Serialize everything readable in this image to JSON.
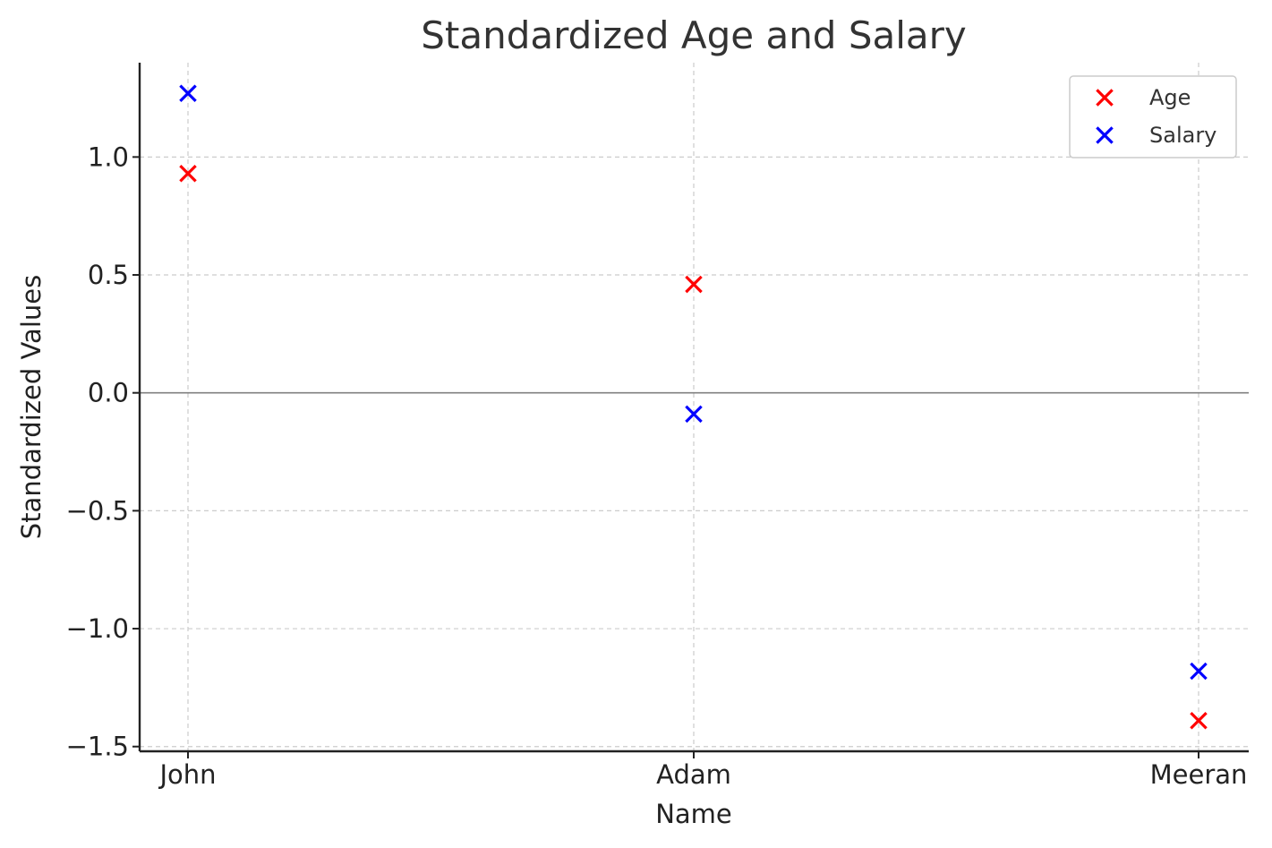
{
  "chart_data": {
    "type": "scatter",
    "title": "Standardized Age and Salary",
    "xlabel": "Name",
    "ylabel": "Standardized Values",
    "categories": [
      "John",
      "Adam",
      "Meeran"
    ],
    "series": [
      {
        "name": "Age",
        "values": [
          0.93,
          0.46,
          -1.39
        ],
        "color": "#ff0000",
        "marker": "x"
      },
      {
        "name": "Salary",
        "values": [
          1.27,
          -0.09,
          -1.18
        ],
        "color": "#0000ff",
        "marker": "x"
      }
    ],
    "ylim": [
      -1.52,
      1.4
    ],
    "yticks": [
      1.0,
      0.5,
      0.0,
      -0.5,
      -1.0,
      -1.5
    ],
    "ytick_labels": [
      "1.0",
      "0.5",
      "0.0",
      "−0.5",
      "−1.0",
      "−1.5"
    ],
    "grid": true,
    "zero_line": true,
    "legend_position": "top-right"
  }
}
